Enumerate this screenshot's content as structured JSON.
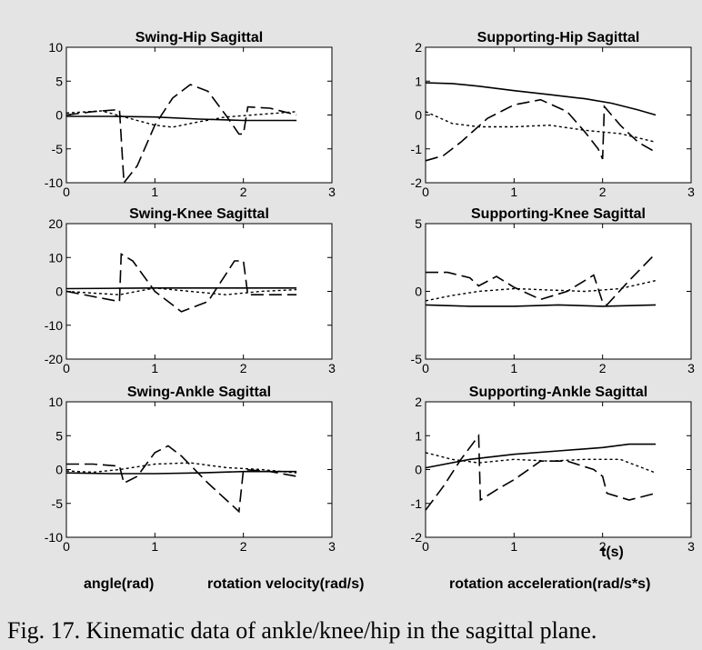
{
  "chart_data": [
    {
      "type": "line",
      "title": "Swing-Hip Sagittal",
      "xlim": [
        0,
        3
      ],
      "ylim": [
        -10,
        10
      ],
      "xticks": [
        "0",
        "1",
        "2",
        "3"
      ],
      "yticks": [
        "10",
        "5",
        "0",
        "-5",
        "-10"
      ],
      "series": [
        {
          "style": "solid",
          "x": [
            0,
            0.5,
            1.0,
            1.5,
            2.0,
            2.6
          ],
          "y": [
            -0.2,
            -0.2,
            -0.3,
            -0.6,
            -0.8,
            -0.8
          ]
        },
        {
          "style": "dashed",
          "x": [
            0,
            0.3,
            0.6,
            0.65,
            0.8,
            1.0,
            1.2,
            1.4,
            1.6,
            1.8,
            1.95,
            2.0,
            2.05,
            2.3,
            2.6
          ],
          "y": [
            0,
            0.5,
            0.8,
            -10,
            -7.5,
            -1.5,
            2.5,
            4.5,
            3.5,
            0,
            -2.8,
            -2.8,
            1.2,
            1,
            0
          ]
        },
        {
          "style": "dotted",
          "x": [
            0,
            0.4,
            0.8,
            1.0,
            1.2,
            1.5,
            1.8,
            2.1,
            2.4,
            2.6
          ],
          "y": [
            0.3,
            0.6,
            -0.8,
            -1.5,
            -1.8,
            -1,
            -0.3,
            0,
            0.3,
            0.5
          ]
        }
      ]
    },
    {
      "type": "line",
      "title": "Supporting-Hip Sagittal",
      "xlim": [
        0,
        3
      ],
      "ylim": [
        -2,
        2
      ],
      "xticks": [
        "0",
        "1",
        "2",
        "3"
      ],
      "yticks": [
        "2",
        "1",
        "0",
        "-1",
        "-2"
      ],
      "series": [
        {
          "style": "solid",
          "x": [
            0,
            0.3,
            0.6,
            1.0,
            1.4,
            1.8,
            2.1,
            2.4,
            2.6
          ],
          "y": [
            0.95,
            0.93,
            0.85,
            0.72,
            0.6,
            0.48,
            0.35,
            0.15,
            0
          ]
        },
        {
          "style": "dashed",
          "x": [
            0,
            0.2,
            0.4,
            0.7,
            1.0,
            1.3,
            1.6,
            1.8,
            1.95,
            2.0,
            2.02,
            2.2,
            2.4,
            2.6
          ],
          "y": [
            -1.35,
            -1.2,
            -0.8,
            -0.1,
            0.3,
            0.45,
            0.1,
            -0.5,
            -1.0,
            -1.3,
            0.25,
            -0.3,
            -0.8,
            -1.1
          ]
        },
        {
          "style": "dotted",
          "x": [
            0,
            0.3,
            0.6,
            1.0,
            1.4,
            1.8,
            2.2,
            2.6
          ],
          "y": [
            0.1,
            -0.25,
            -0.35,
            -0.35,
            -0.3,
            -0.45,
            -0.55,
            -0.8
          ]
        }
      ]
    },
    {
      "type": "line",
      "title": "Swing-Knee Sagittal",
      "xlim": [
        0,
        3
      ],
      "ylim": [
        -20,
        20
      ],
      "xticks": [
        "0",
        "1",
        "2",
        "3"
      ],
      "yticks": [
        "20",
        "10",
        "0",
        "-10",
        "-20"
      ],
      "series": [
        {
          "style": "solid",
          "x": [
            0,
            0.6,
            1.0,
            1.6,
            2.0,
            2.6
          ],
          "y": [
            0.8,
            0.9,
            1.0,
            1.0,
            1.0,
            1.0
          ]
        },
        {
          "style": "dashed",
          "x": [
            0,
            0.3,
            0.6,
            0.62,
            0.75,
            1.0,
            1.3,
            1.6,
            1.8,
            1.9,
            2.0,
            2.05,
            2.3,
            2.6
          ],
          "y": [
            0,
            -1.5,
            -3,
            11,
            9,
            0,
            -6,
            -3,
            5,
            9,
            9,
            -1,
            -1,
            -1
          ]
        },
        {
          "style": "dotted",
          "x": [
            0,
            0.3,
            0.6,
            1.0,
            1.4,
            1.8,
            2.2,
            2.6
          ],
          "y": [
            0,
            -0.5,
            -1,
            1,
            0,
            -1,
            0,
            0.5
          ]
        }
      ]
    },
    {
      "type": "line",
      "title": "Supporting-Knee Sagittal",
      "xlim": [
        0,
        3
      ],
      "ylim": [
        -5,
        5
      ],
      "xticks": [
        "0",
        "1",
        "2",
        "3"
      ],
      "yticks": [
        "5",
        "0",
        "-5"
      ],
      "series": [
        {
          "style": "solid",
          "x": [
            0,
            0.5,
            1.0,
            1.5,
            2.0,
            2.6
          ],
          "y": [
            -1.0,
            -1.1,
            -1.1,
            -1.0,
            -1.1,
            -1.0
          ]
        },
        {
          "style": "dashed",
          "x": [
            0,
            0.25,
            0.5,
            0.6,
            0.8,
            1.0,
            1.3,
            1.6,
            1.9,
            2.0,
            2.05,
            2.3,
            2.6
          ],
          "y": [
            1.4,
            1.4,
            1.0,
            0.4,
            1.1,
            0.3,
            -0.6,
            0,
            1.2,
            -0.8,
            -1.0,
            0.8,
            2.8
          ]
        },
        {
          "style": "dotted",
          "x": [
            0,
            0.3,
            0.6,
            1.0,
            1.4,
            1.8,
            2.2,
            2.6
          ],
          "y": [
            -0.7,
            -0.3,
            0,
            0.2,
            0.1,
            0,
            0.2,
            0.8
          ]
        }
      ]
    },
    {
      "type": "line",
      "title": "Swing-Ankle Sagittal",
      "xlim": [
        0,
        3
      ],
      "ylim": [
        -10,
        10
      ],
      "xticks": [
        "0",
        "1",
        "2",
        "3"
      ],
      "yticks": [
        "10",
        "5",
        "0",
        "-5",
        "-10"
      ],
      "series": [
        {
          "style": "solid",
          "x": [
            0,
            0.5,
            1.0,
            1.5,
            2.0,
            2.6
          ],
          "y": [
            -0.5,
            -0.6,
            -0.6,
            -0.5,
            -0.3,
            -0.3
          ]
        },
        {
          "style": "dashed",
          "x": [
            0,
            0.3,
            0.6,
            0.65,
            0.8,
            1.0,
            1.15,
            1.3,
            1.6,
            1.85,
            1.95,
            2.0,
            2.3,
            2.6
          ],
          "y": [
            0.8,
            0.8,
            0.5,
            -2,
            -1,
            2.5,
            3.5,
            2,
            -2,
            -5,
            -6.2,
            0,
            -0.3,
            -1
          ]
        },
        {
          "style": "dotted",
          "x": [
            0,
            0.3,
            0.6,
            1.0,
            1.4,
            1.8,
            2.2,
            2.6
          ],
          "y": [
            -0.2,
            -0.4,
            0,
            0.8,
            1.0,
            0.3,
            0,
            -0.5
          ]
        }
      ]
    },
    {
      "type": "line",
      "title": "Supporting-Ankle Sagittal",
      "xlim": [
        0,
        3
      ],
      "ylim": [
        -2,
        2
      ],
      "xticks": [
        "0",
        "1",
        "2",
        "3"
      ],
      "yticks": [
        "2",
        "1",
        "0",
        "-1",
        "-2"
      ],
      "series": [
        {
          "style": "solid",
          "x": [
            0,
            0.5,
            1.0,
            1.5,
            2.0,
            2.3,
            2.6
          ],
          "y": [
            0.05,
            0.3,
            0.45,
            0.55,
            0.65,
            0.75,
            0.75
          ]
        },
        {
          "style": "dashed",
          "x": [
            0,
            0.2,
            0.4,
            0.6,
            0.62,
            0.8,
            1.0,
            1.3,
            1.6,
            1.9,
            2.0,
            2.05,
            2.3,
            2.6
          ],
          "y": [
            -1.2,
            -0.5,
            0.3,
            1.0,
            -0.9,
            -0.6,
            -0.3,
            0.25,
            0.25,
            0,
            -0.2,
            -0.7,
            -0.9,
            -0.7
          ]
        },
        {
          "style": "dotted",
          "x": [
            0,
            0.3,
            0.6,
            1.0,
            1.4,
            1.8,
            2.2,
            2.6
          ],
          "y": [
            0.5,
            0.3,
            0.2,
            0.3,
            0.25,
            0.3,
            0.3,
            -0.1
          ]
        }
      ]
    }
  ],
  "xlabel": "t(s)",
  "legend": {
    "angle": "angle(rad)",
    "velocity": "rotation velocity(rad/s)",
    "acceleration": "rotation acceleration(rad/s*s)"
  },
  "caption": "Fig. 17. Kinematic data of ankle/knee/hip in the sagittal plane."
}
